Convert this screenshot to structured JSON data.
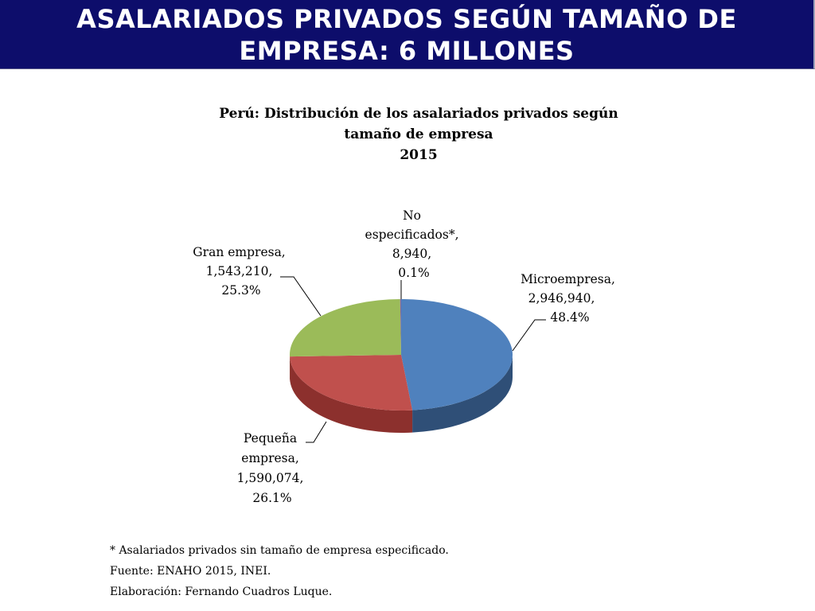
{
  "header": {
    "title_line1": "ASALARIADOS PRIVADOS SEGÚN TAMAÑO DE",
    "title_line2": "EMPRESA: 6 MILLONES"
  },
  "chart_data": {
    "type": "pie",
    "style": "3d",
    "title_line1": "Perú: Distribución  de los asalariados  privados  según",
    "title_line2": "tamaño  de empresa",
    "title_line3": "2015",
    "slices": [
      {
        "label": "Microempresa",
        "value": 2946940,
        "value_text": "2,946,940,",
        "percent": 48.4,
        "percent_text": "48.4%",
        "color": "#4f81bd",
        "side_color": "#2f4f77"
      },
      {
        "label": "Pequeña empresa",
        "value": 1590074,
        "value_text": "1,590,074,",
        "percent": 26.1,
        "percent_text": "26.1%",
        "color": "#c0504d",
        "side_color": "#8c302d"
      },
      {
        "label": "Gran empresa",
        "value": 1543210,
        "value_text": "1,543,210,",
        "percent": 25.3,
        "percent_text": "25.3%",
        "color": "#9bbb59",
        "side_color": "#6f8a3a"
      },
      {
        "label": "No especificados*",
        "value": 8940,
        "value_text": "8,940,",
        "percent": 0.1,
        "percent_text": "0.1%",
        "color": "#8064a2",
        "side_color": "#5a4577"
      }
    ]
  },
  "footnotes": {
    "note": "* Asalariados privados sin tamaño de empresa especificado.",
    "source": "Fuente: ENAHO 2015, INEI.",
    "author": "Elaboración: Fernando Cuadros Luque."
  }
}
